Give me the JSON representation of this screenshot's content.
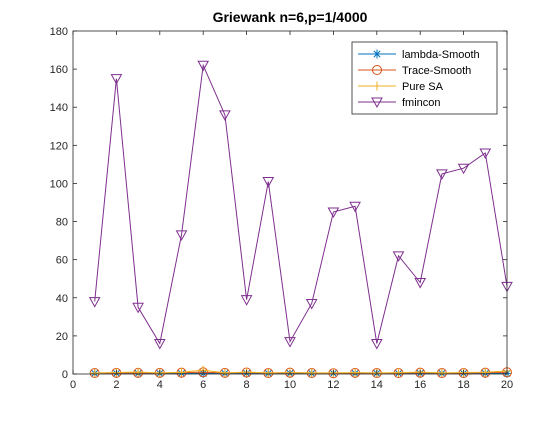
{
  "chart_data": {
    "type": "line",
    "title": "Griewank n=6,p=1/4000",
    "xlabel": "",
    "ylabel": "",
    "xlim": [
      0,
      20
    ],
    "ylim": [
      0,
      180
    ],
    "xticks": [
      "0",
      "2",
      "4",
      "6",
      "8",
      "10",
      "12",
      "14",
      "16",
      "18",
      "20"
    ],
    "yticks": [
      "0",
      "20",
      "40",
      "60",
      "80",
      "100",
      "120",
      "140",
      "160",
      "180"
    ],
    "grid": false,
    "legend_position": "top-right",
    "x": [
      1,
      2,
      3,
      4,
      5,
      6,
      7,
      8,
      9,
      10,
      11,
      12,
      13,
      14,
      15,
      16,
      17,
      18,
      19,
      20
    ],
    "series": [
      {
        "name": "lambda-Smooth",
        "color": "#0072bd",
        "marker": "asterisk",
        "values": [
          0.3,
          0.3,
          0.3,
          0.3,
          0.3,
          0.3,
          0.3,
          0.3,
          0.3,
          0.3,
          0.3,
          0.3,
          0.3,
          0.3,
          0.3,
          0.3,
          0.3,
          0.3,
          0.3,
          0.3
        ]
      },
      {
        "name": "Trace-Smooth",
        "color": "#d95319",
        "marker": "circle",
        "values": [
          0.5,
          0.6,
          0.6,
          0.6,
          0.7,
          0.9,
          0.6,
          0.8,
          0.5,
          0.7,
          0.5,
          0.4,
          0.6,
          0.5,
          0.5,
          0.7,
          0.5,
          0.5,
          0.7,
          0.9
        ]
      },
      {
        "name": "Pure SA",
        "color": "#edb120",
        "marker": "plus",
        "values": [
          0.5,
          0.8,
          1.0,
          0.6,
          0.9,
          2.0,
          0.6,
          1.0,
          0.6,
          0.8,
          0.6,
          0.6,
          0.7,
          0.6,
          0.7,
          1.0,
          0.6,
          0.8,
          0.9,
          1.6
        ]
      },
      {
        "name": "fmincon",
        "color": "#7e2f8e",
        "marker": "triangle-down",
        "values": [
          38,
          155,
          35,
          16,
          73,
          162,
          136,
          39,
          101,
          17,
          37,
          85,
          88,
          16,
          62,
          48,
          105,
          108,
          116,
          46
        ]
      }
    ]
  }
}
